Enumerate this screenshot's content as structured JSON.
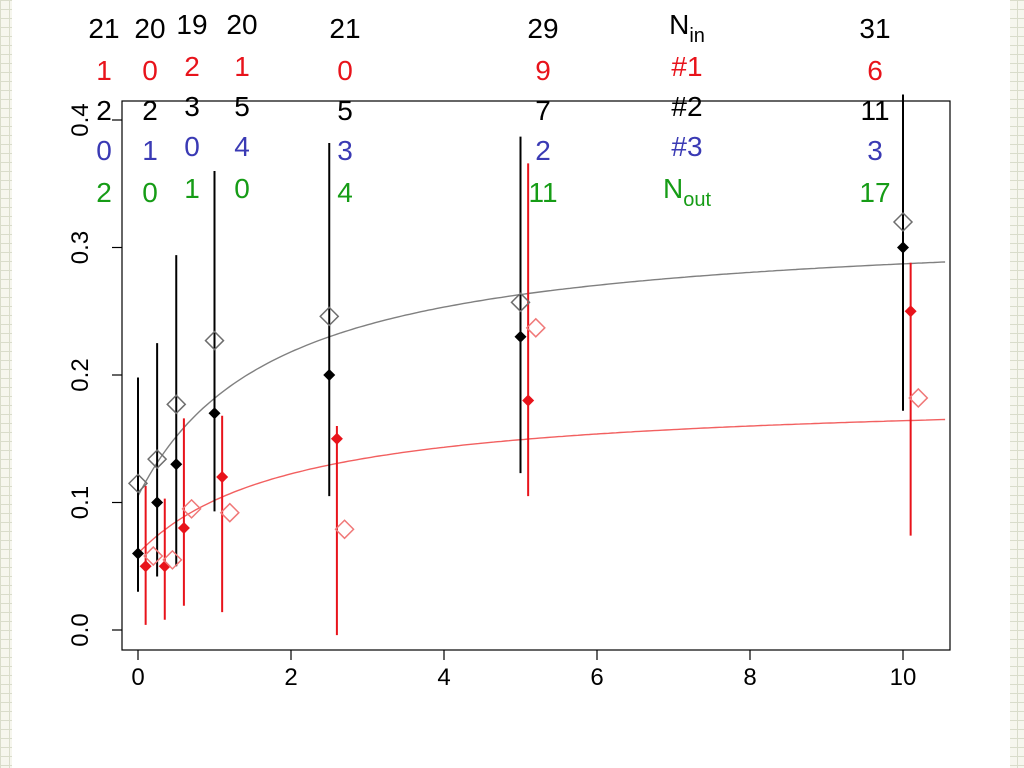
{
  "chart_data": {
    "type": "scatter",
    "title": "",
    "xlabel": "",
    "ylabel": "",
    "xlim": [
      0,
      10.6
    ],
    "ylim": [
      0,
      0.42
    ],
    "x_ticks": [
      "0",
      "2",
      "4",
      "6",
      "8",
      "10"
    ],
    "y_ticks": [
      "0.0",
      "0.1",
      "0.2",
      "0.3",
      "0.4"
    ],
    "colors": {
      "black": "#000000",
      "red": "#e8131b",
      "pink": "#f07878",
      "grey": "#6e6e6e",
      "fit_grey": "#808080",
      "fit_red": "#f26060",
      "blue": "#3a3ab4",
      "green": "#169c16"
    },
    "series": [
      {
        "marker": "filled-diamond",
        "color": "black",
        "points": [
          {
            "x": 0.0,
            "y": 0.06,
            "lo": 0.03,
            "hi": 0.198
          },
          {
            "x": 0.25,
            "y": 0.1,
            "lo": 0.042,
            "hi": 0.225
          },
          {
            "x": 0.5,
            "y": 0.13,
            "lo": 0.05,
            "hi": 0.294
          },
          {
            "x": 1.0,
            "y": 0.17,
            "lo": 0.093,
            "hi": 0.36
          },
          {
            "x": 2.5,
            "y": 0.2,
            "lo": 0.105,
            "hi": 0.382
          },
          {
            "x": 5.0,
            "y": 0.23,
            "lo": 0.123,
            "hi": 0.387
          },
          {
            "x": 10.0,
            "y": 0.3,
            "lo": 0.172,
            "hi": 0.42
          }
        ]
      },
      {
        "marker": "filled-diamond",
        "color": "red",
        "points": [
          {
            "x": 0.1,
            "y": 0.05,
            "lo": 0.004,
            "hi": 0.113
          },
          {
            "x": 0.35,
            "y": 0.05,
            "lo": 0.008,
            "hi": 0.103
          },
          {
            "x": 0.6,
            "y": 0.08,
            "lo": 0.019,
            "hi": 0.166
          },
          {
            "x": 1.1,
            "y": 0.12,
            "lo": 0.014,
            "hi": 0.168
          },
          {
            "x": 2.6,
            "y": 0.15,
            "lo": -0.004,
            "hi": 0.16
          },
          {
            "x": 5.1,
            "y": 0.18,
            "lo": 0.105,
            "hi": 0.366
          },
          {
            "x": 10.1,
            "y": 0.25,
            "lo": 0.074,
            "hi": 0.288
          }
        ]
      },
      {
        "marker": "open-diamond",
        "color": "grey",
        "points": [
          {
            "x": 0.0,
            "y": 0.115
          },
          {
            "x": 0.25,
            "y": 0.134
          },
          {
            "x": 0.5,
            "y": 0.177
          },
          {
            "x": 1.0,
            "y": 0.227
          },
          {
            "x": 2.5,
            "y": 0.246
          },
          {
            "x": 5.0,
            "y": 0.257
          },
          {
            "x": 10.0,
            "y": 0.32
          }
        ]
      },
      {
        "marker": "open-diamond",
        "color": "pink",
        "points": [
          {
            "x": 0.2,
            "y": 0.058
          },
          {
            "x": 0.45,
            "y": 0.055
          },
          {
            "x": 0.7,
            "y": 0.095
          },
          {
            "x": 1.2,
            "y": 0.092
          },
          {
            "x": 2.7,
            "y": 0.079
          },
          {
            "x": 5.2,
            "y": 0.237
          },
          {
            "x": 10.2,
            "y": 0.182
          }
        ]
      }
    ],
    "fits": [
      {
        "color": "fit_grey",
        "y0": 0.105,
        "ymax": 0.32,
        "k": 0.5
      },
      {
        "color": "fit_red",
        "y0": 0.06,
        "ymax": 0.185,
        "k": 0.45
      }
    ],
    "count_table": {
      "rows": [
        {
          "color": "black",
          "label": "N",
          "label_sub": "in",
          "values": [
            "21",
            "20",
            "19",
            "20",
            "21",
            "29",
            "31"
          ]
        },
        {
          "color": "red",
          "label": "#1",
          "values": [
            "1",
            "0",
            "2",
            "1",
            "0",
            "9",
            "6"
          ]
        },
        {
          "color": "black",
          "label": "#2",
          "values": [
            "2",
            "2",
            "3",
            "5",
            "5",
            "7",
            "11"
          ]
        },
        {
          "color": "blue",
          "label": "#3",
          "values": [
            "0",
            "1",
            "0",
            "4",
            "3",
            "2",
            "3"
          ]
        },
        {
          "color": "green",
          "label": "N",
          "label_sub": "out",
          "values": [
            "2",
            "0",
            "1",
            "0",
            "4",
            "11",
            "17"
          ]
        }
      ]
    }
  }
}
